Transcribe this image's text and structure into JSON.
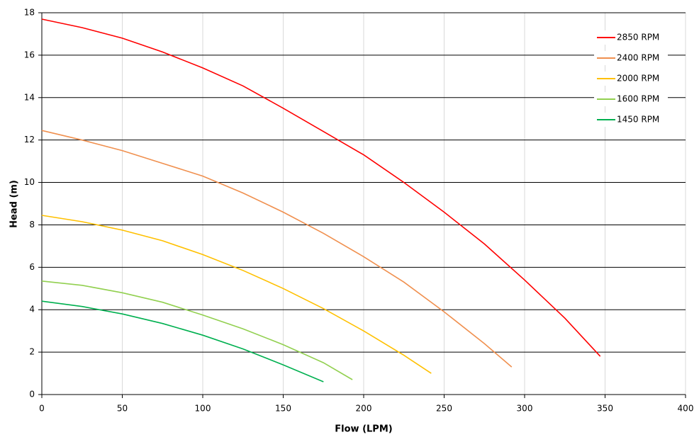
{
  "chart_data": {
    "type": "line",
    "x_label": "Flow (LPM)",
    "y_label": "Head (m)",
    "xlim": [
      0,
      400
    ],
    "xticks": [
      0,
      50,
      100,
      150,
      200,
      250,
      300,
      350,
      400
    ],
    "ylim": [
      0,
      18
    ],
    "yticks": [
      0,
      2,
      4,
      6,
      8,
      10,
      12,
      14,
      16,
      18
    ],
    "grid": true,
    "legend": "upper right",
    "series": [
      {
        "name": "2850 RPM",
        "color": "#ff0000",
        "x": [
          0,
          25,
          50,
          75,
          100,
          125,
          150,
          175,
          200,
          225,
          250,
          275,
          300,
          325,
          347
        ],
        "values": [
          17.7,
          17.3,
          16.8,
          16.15,
          15.4,
          14.55,
          13.5,
          12.4,
          11.3,
          10.0,
          8.6,
          7.1,
          5.4,
          3.6,
          1.8
        ]
      },
      {
        "name": "2400 RPM",
        "color": "#f0904f",
        "x": [
          0,
          25,
          50,
          75,
          100,
          125,
          150,
          175,
          200,
          225,
          250,
          275,
          292
        ],
        "values": [
          12.45,
          12.0,
          11.5,
          10.9,
          10.3,
          9.5,
          8.6,
          7.6,
          6.5,
          5.3,
          3.9,
          2.4,
          1.3
        ]
      },
      {
        "name": "2000 RPM",
        "color": "#ffc000",
        "x": [
          0,
          25,
          50,
          75,
          100,
          125,
          150,
          175,
          200,
          225,
          242
        ],
        "values": [
          8.45,
          8.15,
          7.75,
          7.25,
          6.6,
          5.85,
          5.0,
          4.05,
          3.0,
          1.85,
          1.0
        ]
      },
      {
        "name": "1600 RPM",
        "color": "#92d050",
        "x": [
          0,
          25,
          50,
          75,
          100,
          125,
          150,
          175,
          193
        ],
        "values": [
          5.35,
          5.15,
          4.8,
          4.35,
          3.75,
          3.1,
          2.35,
          1.5,
          0.7
        ]
      },
      {
        "name": "1450 RPM",
        "color": "#00b050",
        "x": [
          0,
          25,
          50,
          75,
          100,
          125,
          150,
          175
        ],
        "values": [
          4.4,
          4.15,
          3.8,
          3.35,
          2.8,
          2.15,
          1.4,
          0.6
        ]
      }
    ]
  }
}
